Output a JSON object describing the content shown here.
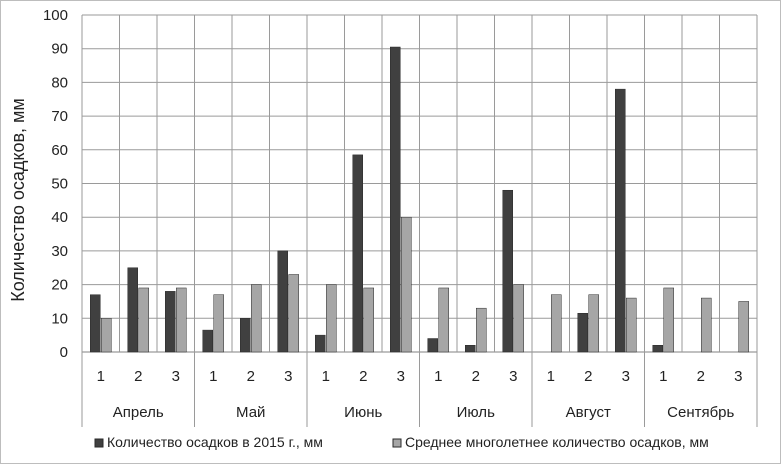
{
  "chart_data": {
    "type": "bar",
    "ylabel": "Количество осадков, мм",
    "ylim": [
      0,
      100
    ],
    "yticks": [
      "0",
      "10",
      "20",
      "30",
      "40",
      "50",
      "60",
      "70",
      "80",
      "90",
      "100"
    ],
    "months": [
      "Апрель",
      "Май",
      "Июнь",
      "Июль",
      "Август",
      "Сентябрь"
    ],
    "decades": [
      "1",
      "2",
      "3"
    ],
    "series": [
      {
        "name": "Количество осадков в 2015 г., мм",
        "color": "#404040",
        "values": [
          17,
          25,
          18,
          6.5,
          10,
          30,
          5,
          58.5,
          90.5,
          4,
          2,
          48,
          0,
          11.5,
          78,
          2,
          0,
          0
        ]
      },
      {
        "name": "Среднее многолетнее количество осадков, мм",
        "color": "#a6a6a6",
        "values": [
          10,
          19,
          19,
          17,
          20,
          23,
          20,
          19,
          40,
          19,
          13,
          20,
          17,
          17,
          16,
          19,
          16,
          15
        ]
      }
    ],
    "grid": true,
    "legend_position": "bottom"
  }
}
